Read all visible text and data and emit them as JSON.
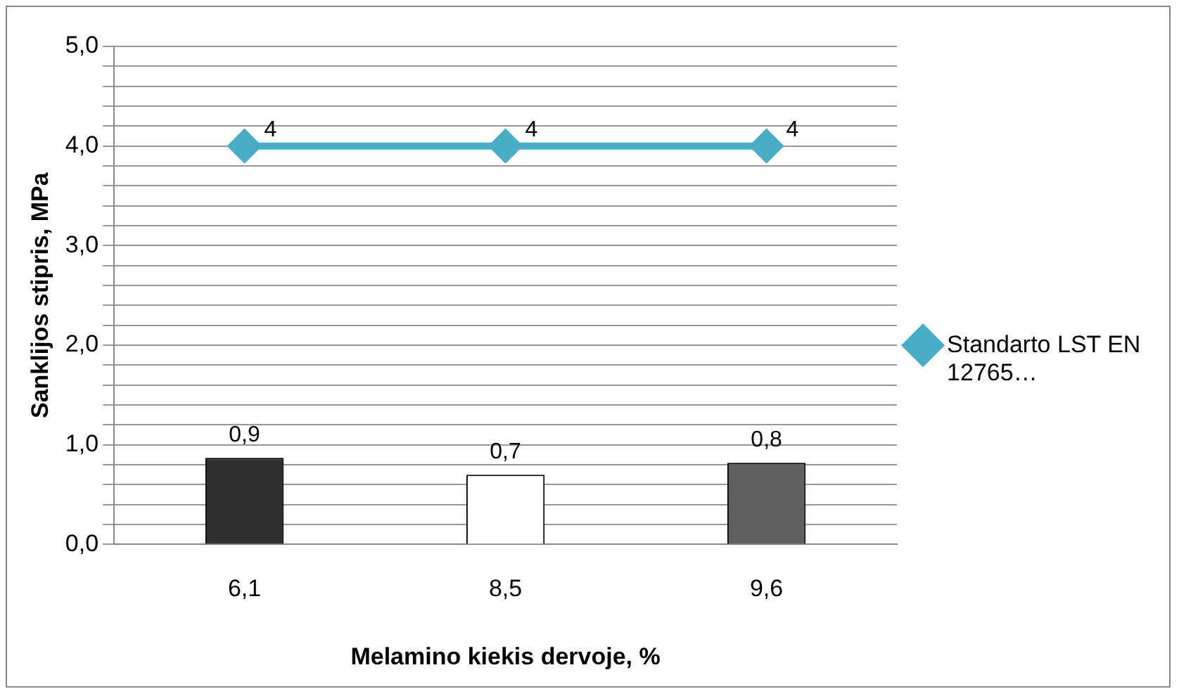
{
  "chart_data": {
    "type": "bar",
    "xlabel": "Melamino kiekis dervoje, %",
    "ylabel": "Sanklijos stipris, MPa",
    "categories": [
      "6,1",
      "8,5",
      "9,6"
    ],
    "series": [
      {
        "colors": [
          "#303030",
          "#ffffff",
          "#606060"
        ],
        "values": [
          0.87,
          0.7,
          0.82
        ],
        "value_labels": [
          "0,9",
          "0,7",
          "0,8"
        ]
      },
      {
        "type": "line",
        "name": "Standarto LST EN 12765…",
        "color": "#4bacc6",
        "values": [
          4,
          4,
          4
        ],
        "value_labels": [
          "4",
          "4",
          "4"
        ]
      }
    ],
    "ylim": [
      0,
      5
    ],
    "yticks": [
      {
        "value": 0,
        "label": "0,0"
      },
      {
        "value": 0.2,
        "label": null
      },
      {
        "value": 0.4,
        "label": null
      },
      {
        "value": 0.6,
        "label": null
      },
      {
        "value": 0.8,
        "label": null
      },
      {
        "value": 1,
        "label": "1,0"
      },
      {
        "value": 1.2,
        "label": null
      },
      {
        "value": 1.4,
        "label": null
      },
      {
        "value": 1.6,
        "label": null
      },
      {
        "value": 1.8,
        "label": null
      },
      {
        "value": 2,
        "label": "2,0"
      },
      {
        "value": 2.2,
        "label": null
      },
      {
        "value": 2.4,
        "label": null
      },
      {
        "value": 2.6,
        "label": null
      },
      {
        "value": 2.8,
        "label": null
      },
      {
        "value": 3,
        "label": "3,0"
      },
      {
        "value": 3.2,
        "label": null
      },
      {
        "value": 3.4,
        "label": null
      },
      {
        "value": 3.6,
        "label": null
      },
      {
        "value": 3.8,
        "label": null
      },
      {
        "value": 4,
        "label": "4,0"
      },
      {
        "value": 4.2,
        "label": null
      },
      {
        "value": 4.4,
        "label": null
      },
      {
        "value": 4.6,
        "label": null
      },
      {
        "value": 4.8,
        "label": null
      },
      {
        "value": 5,
        "label": "5,0"
      }
    ],
    "grid": "y",
    "legend": "right",
    "marker": "diamond",
    "line_style": "solid"
  }
}
